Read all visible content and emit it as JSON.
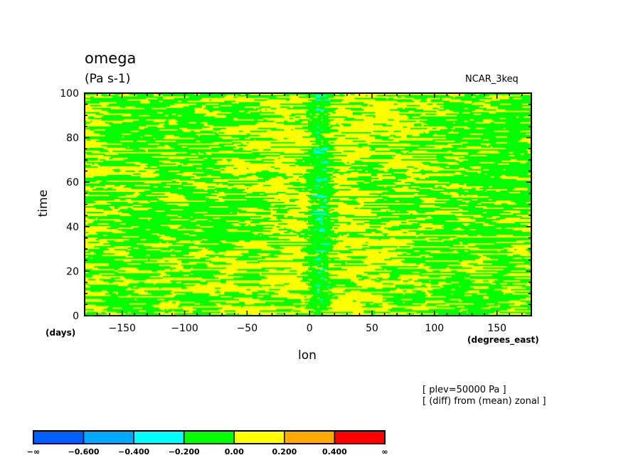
{
  "chart_data": {
    "type": "heatmap",
    "title": "omega",
    "units": "(Pa s-1)",
    "model_label": "NCAR_3keq",
    "xlabel": "lon",
    "xunits": "(degrees_east)",
    "ylabel": "time",
    "yunits": "(days)",
    "xlim": [
      -180,
      177.5
    ],
    "ylim": [
      0,
      100
    ],
    "xticks": [
      -150,
      -100,
      -50,
      0,
      50,
      100,
      150
    ],
    "yticks": [
      0,
      20,
      40,
      60,
      80,
      100
    ],
    "annotations": [
      "[ plev=50000 Pa ]",
      "[ (diff) from (mean) zonal ]"
    ],
    "colorbar": {
      "levels": [
        "−∞",
        "−0.600",
        "−0.400",
        "−0.200",
        "0.00",
        "0.200",
        "0.400",
        "∞"
      ],
      "bounds": [
        -0.6,
        -0.4,
        -0.2,
        0.0,
        0.2,
        0.4
      ],
      "colors": [
        "#0060ff",
        "#00a8ff",
        "#00ffff",
        "#00ff00",
        "#ffff00",
        "#ffaa00",
        "#ff0000"
      ]
    },
    "description_of_field": "mostly values between -0.2 and 0.2 (green/yellow) in zonally elongated streaks; values below -0.2 (cyan) concentrated near lon 0-15"
  }
}
